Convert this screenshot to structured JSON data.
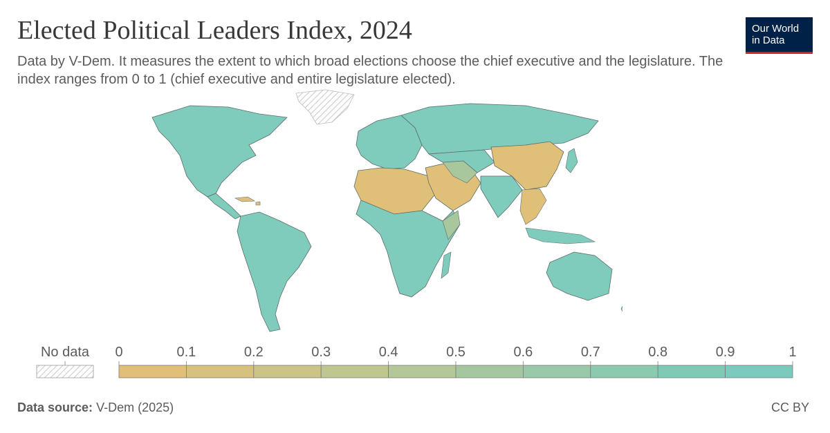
{
  "header": {
    "title": "Elected Political Leaders Index, 2024",
    "subtitle": "Data by V-Dem. It measures the extent to which broad elections choose the chief executive and the legislature. The index ranges from 0 to 1 (chief executive and entire legislature elected).",
    "logo_line1": "Our World",
    "logo_line2": "in Data"
  },
  "legend": {
    "no_data_label": "No data",
    "ticks": [
      "0",
      "0.1",
      "0.2",
      "0.3",
      "0.4",
      "0.5",
      "0.6",
      "0.7",
      "0.8",
      "0.9",
      "1"
    ],
    "colors": [
      "#e2bf78",
      "#d8c17f",
      "#ccc487",
      "#c0c68f",
      "#b3c797",
      "#a5c79f",
      "#98c9a8",
      "#8bcaae",
      "#7fcab5",
      "#7acbbd"
    ]
  },
  "map_colors": {
    "high": "#7fcbbc",
    "low": "#e0c079",
    "mid": "#a9c79c",
    "ocean": "#ffffff",
    "border": "#5c6b6a"
  },
  "footer": {
    "source_label": "Data source:",
    "source_value": "V-Dem (2025)",
    "license": "CC BY"
  }
}
